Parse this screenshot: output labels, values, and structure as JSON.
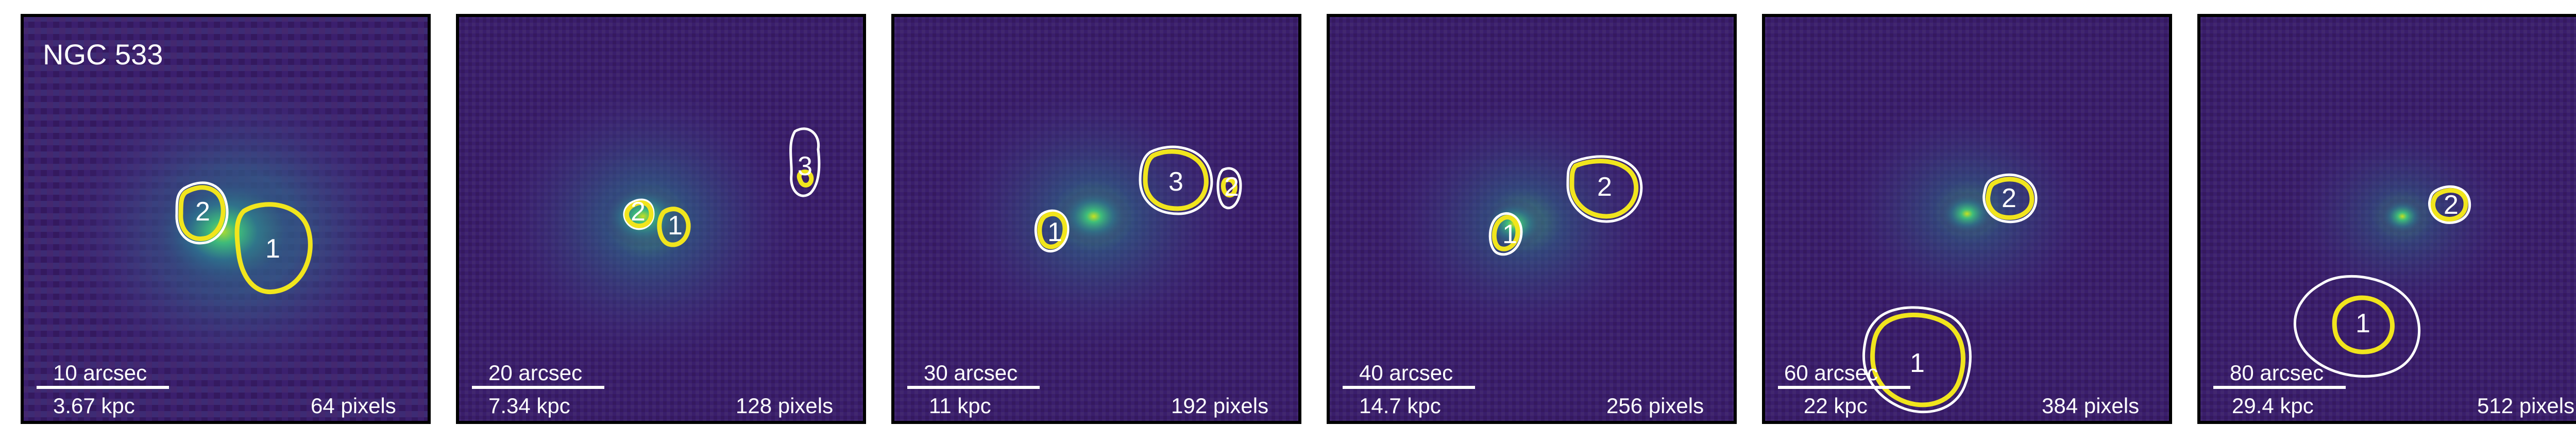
{
  "figure": {
    "object_name": "NGC 533",
    "colors": {
      "background": "#3b1f6e",
      "mid": "#2d6e8e",
      "core": "#3fc27a",
      "peak": "#b0dd2f",
      "contour_primary": "#f1e51d",
      "contour_secondary": "#ffffff",
      "frame": "#000000"
    },
    "panels": [
      {
        "id": "p1",
        "arcsec": "10 arcsec",
        "kpc": "3.67 kpc",
        "pixels": "64 pixels",
        "regions": [
          "2",
          "1"
        ]
      },
      {
        "id": "p2",
        "arcsec": "20 arcsec",
        "kpc": "7.34 kpc",
        "pixels": "128 pixels",
        "regions": [
          "2",
          "1",
          "3"
        ]
      },
      {
        "id": "p3",
        "arcsec": "30 arcsec",
        "kpc": "11 kpc",
        "pixels": "192 pixels",
        "regions": [
          "1",
          "3",
          "2"
        ]
      },
      {
        "id": "p4",
        "arcsec": "40 arcsec",
        "kpc": "14.7 kpc",
        "pixels": "256 pixels",
        "regions": [
          "1",
          "2"
        ]
      },
      {
        "id": "p5",
        "arcsec": "60 arcsec",
        "kpc": "22 kpc",
        "pixels": "384 pixels",
        "regions": [
          "2",
          "1"
        ]
      },
      {
        "id": "p6",
        "arcsec": "80 arcsec",
        "kpc": "29.4 kpc",
        "pixels": "512 pixels",
        "regions": [
          "2",
          "1"
        ]
      }
    ]
  }
}
